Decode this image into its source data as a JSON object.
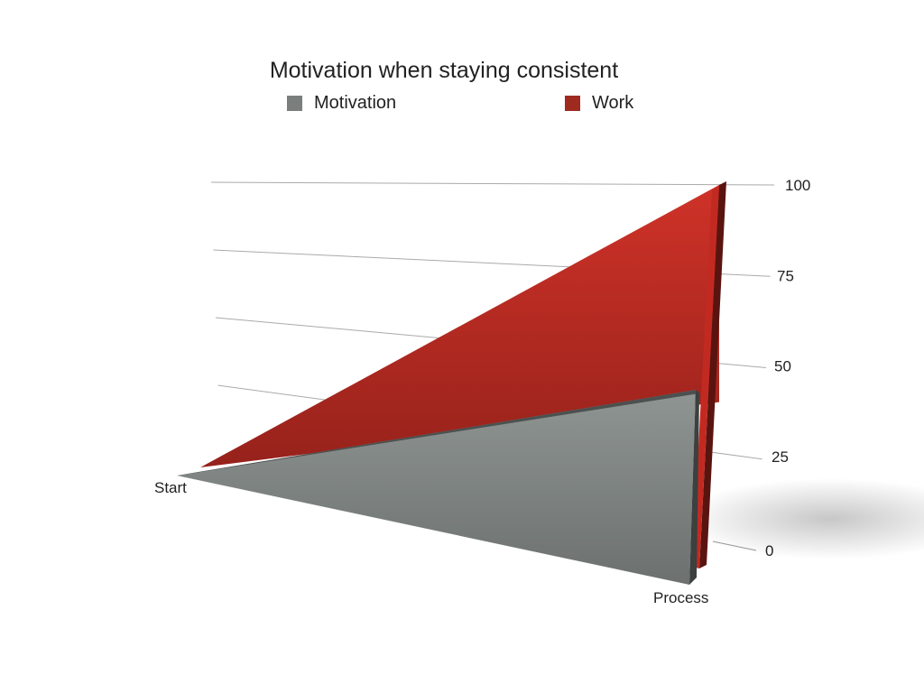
{
  "chart_data": {
    "type": "area",
    "title": "Motivation when staying consistent",
    "categories": [
      "Start",
      "Process"
    ],
    "series": [
      {
        "name": "Motivation",
        "values": [
          0,
          45
        ],
        "color": "#7a7f7d"
      },
      {
        "name": "Work",
        "values": [
          0,
          100
        ],
        "color": "#b3261e"
      }
    ],
    "ylim": [
      0,
      100
    ],
    "yticks": [
      "0",
      "25",
      "50",
      "75",
      "100"
    ],
    "xlabel": "",
    "ylabel": "",
    "grid": true,
    "legend_position": "top",
    "three_d": true
  }
}
